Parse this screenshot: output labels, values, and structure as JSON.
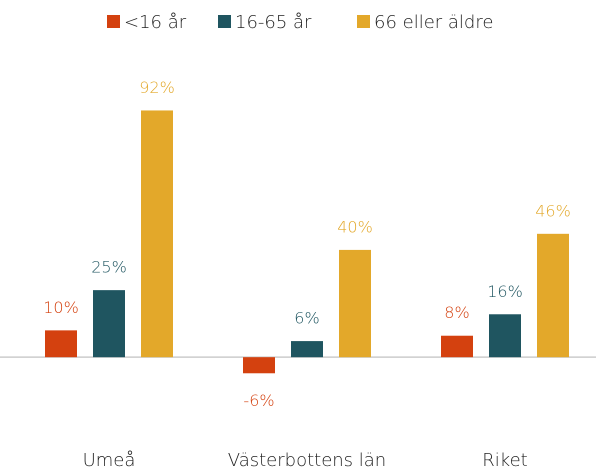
{
  "chart_data": {
    "type": "bar",
    "categories": [
      "Umeå",
      "Västerbottens län",
      "Riket"
    ],
    "series": [
      {
        "name": "<16 år",
        "color": "#d4410f",
        "values": [
          10,
          -6,
          8
        ],
        "value_labels": [
          "10%",
          "-6%",
          "8%"
        ]
      },
      {
        "name": "16-65 år",
        "color": "#1f5560",
        "values": [
          25,
          6,
          16
        ],
        "value_labels": [
          "25%",
          "6%",
          "16%"
        ]
      },
      {
        "name": "66 eller äldre",
        "color": "#e3a82a",
        "values": [
          92,
          40,
          46
        ],
        "value_labels": [
          "92%",
          "40%",
          "46%"
        ]
      }
    ],
    "ylim": [
      -10,
      100
    ],
    "grid": false,
    "legend": "top"
  }
}
